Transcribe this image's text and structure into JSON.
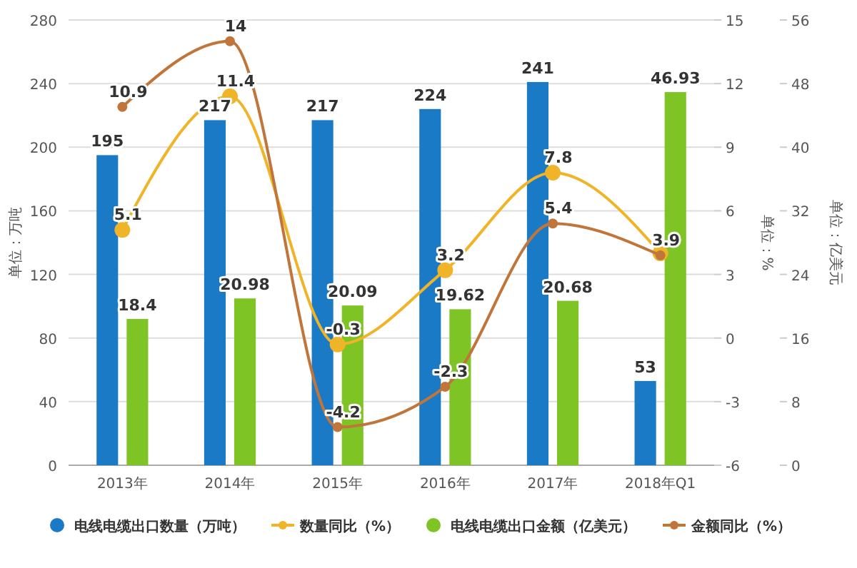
{
  "chart_data": {
    "type": "bar",
    "categories": [
      "2013年",
      "2014年",
      "2015年",
      "2016年",
      "2017年",
      "2018年Q1"
    ],
    "ylabel": "单位：万吨",
    "y2label": "单位：%",
    "y3label": "单位：亿美元",
    "ylim": [
      0,
      280
    ],
    "yticks": [
      0,
      40,
      80,
      120,
      160,
      200,
      240,
      280
    ],
    "y2lim": [
      -6,
      15
    ],
    "y2ticks": [
      -6,
      -3,
      0,
      3,
      6,
      9,
      12,
      15
    ],
    "y3lim": [
      0,
      56
    ],
    "y3ticks": [
      0,
      8,
      16,
      24,
      32,
      40,
      48,
      56
    ],
    "grid": "y",
    "legend": "bottom",
    "marker": "circle",
    "line_style": "solid",
    "series": [
      {
        "name": "电线电缆出口数量（万吨）",
        "axis": "y",
        "color": "#1a7ac5",
        "values": [
          195,
          217,
          217,
          224,
          241,
          53
        ],
        "value_labels": [
          "195",
          "217",
          "217",
          "224",
          "241",
          "53"
        ]
      },
      {
        "name": "数量同比（%）",
        "type": "line",
        "axis": "y2",
        "color": "#f0b429",
        "values": [
          5.1,
          11.4,
          -0.3,
          3.2,
          7.8,
          4.0
        ],
        "value_labels": [
          "5.1",
          "11.4",
          "-0.3",
          "3.2",
          "7.8",
          null
        ]
      },
      {
        "name": "电线电缆出口金额（亿美元）",
        "axis": "y3",
        "color": "#7dc424",
        "values": [
          18.4,
          20.98,
          20.09,
          19.62,
          20.68,
          46.93
        ],
        "value_labels": [
          "18.4",
          "20.98",
          "20.09",
          "19.62",
          "20.68",
          "46.93"
        ]
      },
      {
        "name": "金额同比（%）",
        "type": "line",
        "axis": "y2",
        "color": "#c0763a",
        "values": [
          10.9,
          14,
          -4.2,
          -2.3,
          5.4,
          3.9
        ],
        "value_labels": [
          "10.9",
          "14",
          "-4.2",
          "-2.3",
          "5.4",
          "3.9"
        ]
      }
    ]
  }
}
